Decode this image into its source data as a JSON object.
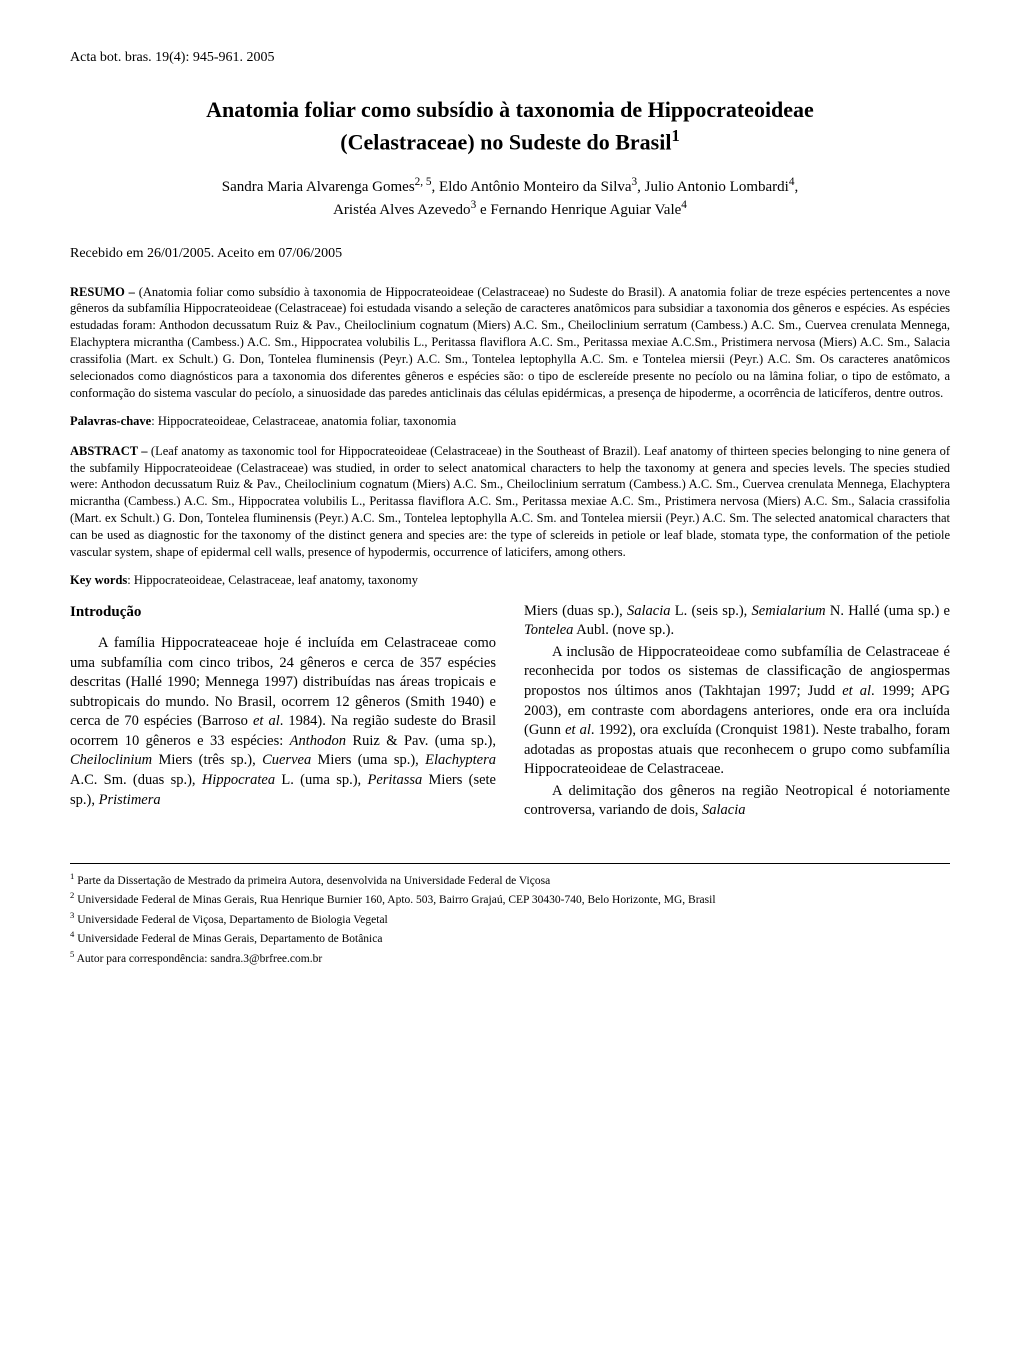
{
  "journal_ref": "Acta bot. bras. 19(4): 945-961. 2005",
  "title_line1": "Anatomia foliar como subsídio à taxonomia de Hippocrateoideae",
  "title_line2": "(Celastraceae) no Sudeste do Brasil",
  "title_sup": "1",
  "authors_line1": "Sandra Maria Alvarenga Gomes",
  "authors_sup1": "2, 5",
  "authors_line1b": ", Eldo Antônio Monteiro da Silva",
  "authors_sup2": "3",
  "authors_line1c": ", Julio Antonio Lombardi",
  "authors_sup3": "4",
  "authors_line1d": ",",
  "authors_line2a": "Aristéa Alves Azevedo",
  "authors_sup4": "3",
  "authors_line2b": " e Fernando Henrique Aguiar Vale",
  "authors_sup5": "4",
  "received": "Recebido em 26/01/2005. Aceito em 07/06/2005",
  "resumo_label": "RESUMO – ",
  "resumo_text": "(Anatomia foliar como subsídio à taxonomia de Hippocrateoideae (Celastraceae) no Sudeste do Brasil). A anatomia foliar de treze espécies pertencentes a nove gêneros da subfamília Hippocrateoideae (Celastraceae) foi estudada visando a seleção de caracteres anatômicos para subsidiar a taxonomia dos gêneros e espécies. As espécies estudadas foram: Anthodon decussatum Ruiz & Pav., Cheiloclinium cognatum (Miers) A.C. Sm., Cheiloclinium serratum (Cambess.) A.C. Sm., Cuervea crenulata Mennega, Elachyptera micrantha (Cambess.) A.C. Sm., Hippocratea volubilis L., Peritassa flaviflora A.C. Sm., Peritassa mexiae A.C.Sm., Pristimera nervosa (Miers) A.C. Sm., Salacia crassifolia (Mart. ex Schult.) G. Don, Tontelea fluminensis (Peyr.) A.C. Sm., Tontelea leptophylla A.C. Sm. e Tontelea miersii (Peyr.) A.C. Sm. Os caracteres anatômicos selecionados como diagnósticos para a taxonomia dos diferentes gêneros e espécies são: o tipo de esclereíde presente no pecíolo ou na lâmina foliar, o tipo de estômato, a conformação do sistema vascular do pecíolo, a sinuosidade das paredes anticlinais das células epidérmicas, a presença de hipoderme, a ocorrência de laticíferos, dentre outros.",
  "palavras_label": "Palavras-chave",
  "palavras_text": ": Hippocrateoideae, Celastraceae, anatomia foliar, taxonomia",
  "abstract_label": "ABSTRACT – ",
  "abstract_text": "(Leaf anatomy as taxonomic tool for Hippocrateoideae (Celastraceae) in the Southeast of Brazil). Leaf anatomy of thirteen species belonging to nine genera of the subfamily Hippocrateoideae (Celastraceae) was studied, in order to select anatomical characters to help the taxonomy at genera and species levels. The species studied were: Anthodon decussatum Ruiz & Pav., Cheiloclinium cognatum (Miers) A.C. Sm., Cheiloclinium serratum (Cambess.) A.C. Sm., Cuervea crenulata Mennega, Elachyptera micrantha (Cambess.) A.C. Sm., Hippocratea volubilis L., Peritassa flaviflora A.C. Sm., Peritassa mexiae A.C. Sm., Pristimera nervosa (Miers) A.C. Sm., Salacia crassifolia (Mart. ex Schult.) G. Don, Tontelea fluminensis (Peyr.) A.C. Sm., Tontelea leptophylla A.C. Sm. and Tontelea miersii (Peyr.) A.C. Sm. The selected anatomical characters that can be used as diagnostic for the taxonomy of the distinct genera and species are: the type of sclereids in petiole or leaf blade, stomata type, the conformation of the petiole vascular system, shape of epidermal cell walls, presence of hypodermis, occurrence of laticifers, among others.",
  "keywords_label": "Key words",
  "keywords_text": ": Hippocrateoideae, Celastraceae, leaf anatomy, taxonomy",
  "intro_heading": "Introdução",
  "col1_p1_a": "A família Hippocrateaceae hoje é incluída em Celastraceae como uma subfamília com cinco tribos, 24 gêneros e cerca de 357 espécies descritas (Hallé 1990; Mennega 1997) distribuídas nas áreas tropicais e subtropicais do mundo. No Brasil, ocorrem 12 gêneros (Smith 1940) e cerca de 70 espécies (Barroso ",
  "col1_p1_b": "et al",
  "col1_p1_c": ". 1984). Na região sudeste do Brasil ocorrem 10 gêneros e 33 espécies: ",
  "col1_p1_d": "Anthodon",
  "col1_p1_e": " Ruiz & Pav. (uma sp.), ",
  "col1_p1_f": "Cheiloclinium",
  "col1_p1_g": " Miers (três sp.), ",
  "col1_p1_h": "Cuervea",
  "col1_p1_i": " Miers (uma sp.), ",
  "col1_p1_j": "Elachyptera",
  "col1_p1_k": " A.C. Sm. (duas sp.), ",
  "col1_p1_l": "Hippocratea",
  "col1_p1_m": " L. (uma sp.), ",
  "col1_p1_n": "Peritassa",
  "col1_p1_o": " Miers (sete sp.), ",
  "col1_p1_p": "Pristimera",
  "col2_p1_a": "Miers (duas sp.), ",
  "col2_p1_b": "Salacia",
  "col2_p1_c": " L. (seis sp.), ",
  "col2_p1_d": "Semialarium",
  "col2_p1_e": " N. Hallé (uma sp.) e ",
  "col2_p1_f": "Tontelea",
  "col2_p1_g": " Aubl. (nove sp.).",
  "col2_p2_a": "A inclusão de Hippocrateoideae como subfamília de Celastraceae é reconhecida por todos os sistemas de classificação de angiospermas propostos nos últimos anos (Takhtajan 1997; Judd ",
  "col2_p2_b": "et al",
  "col2_p2_c": ". 1999; APG 2003), em contraste com abordagens anteriores, onde era ora incluída (Gunn ",
  "col2_p2_d": "et al",
  "col2_p2_e": ". 1992), ora excluída (Cronquist 1981). Neste trabalho, foram adotadas as propostas atuais que reconhecem o grupo como subfamília Hippocrateoideae de Celastraceae.",
  "col2_p3_a": "A delimitação dos gêneros na região Neotropical é notoriamente controversa, variando de dois, ",
  "col2_p3_b": "Salacia",
  "fn1_sup": "1",
  "fn1": "Parte da Dissertação de Mestrado da primeira Autora, desenvolvida na Universidade Federal de Viçosa",
  "fn2_sup": "2",
  "fn2": "Universidade Federal de Minas Gerais, Rua Henrique Burnier 160, Apto. 503, Bairro Grajaú, CEP 30430-740, Belo Horizonte, MG, Brasil",
  "fn3_sup": "3",
  "fn3": "Universidade Federal de Viçosa, Departamento de Biologia Vegetal",
  "fn4_sup": "4",
  "fn4": "Universidade Federal de Minas Gerais, Departamento de Botânica",
  "fn5_sup": "5",
  "fn5": "Autor para correspondência: sandra.3@brfree.com.br"
}
